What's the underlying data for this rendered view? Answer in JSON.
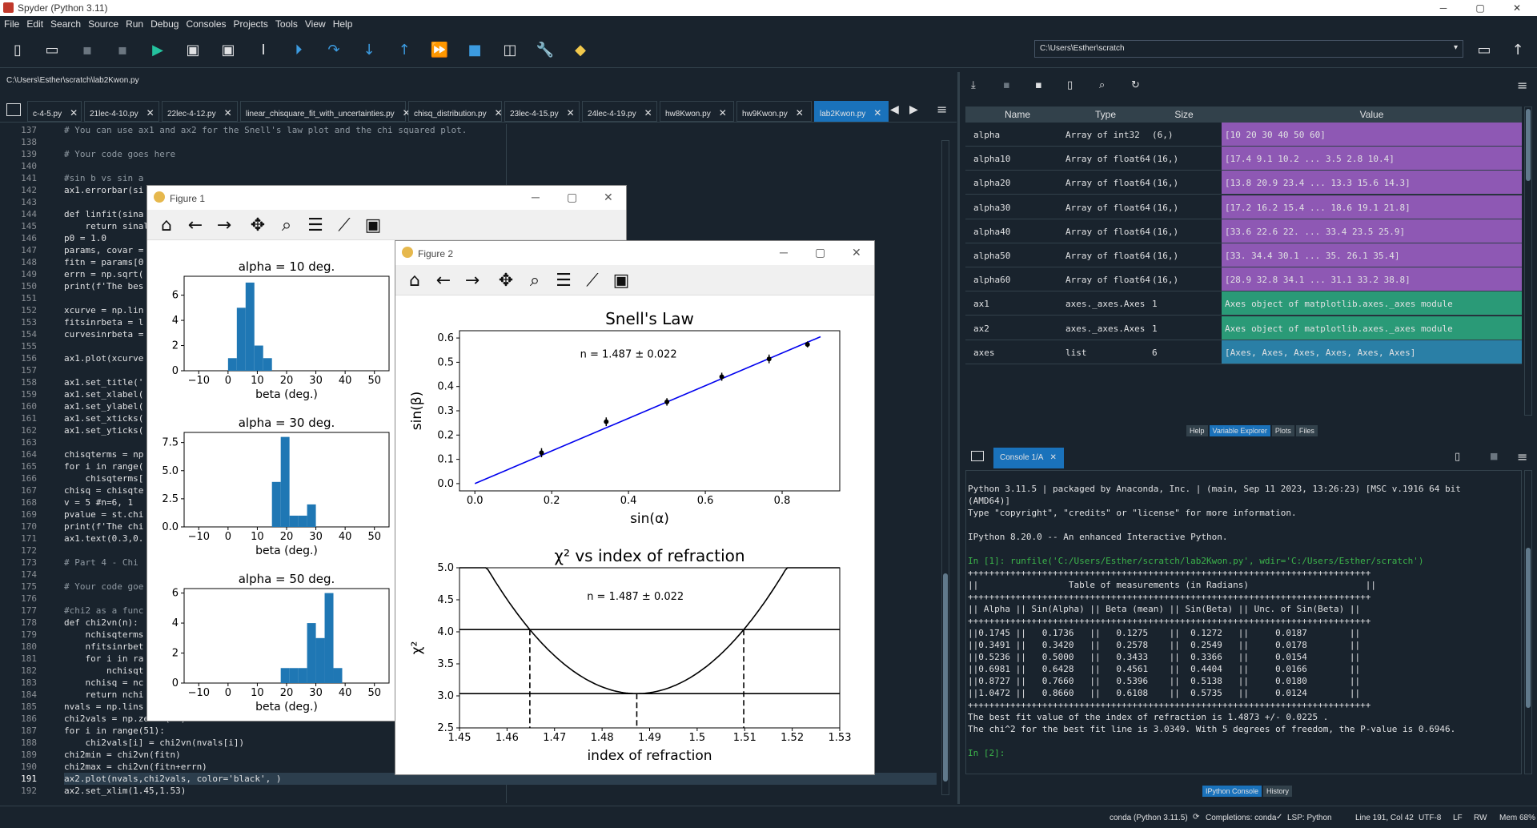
{
  "window": {
    "title": "Spyder (Python 3.11)"
  },
  "menu": [
    "File",
    "Edit",
    "Search",
    "Source",
    "Run",
    "Debug",
    "Consoles",
    "Projects",
    "Tools",
    "View",
    "Help"
  ],
  "toolbar": {
    "working_dir": "C:\\Users\\Esther\\scratch"
  },
  "editor": {
    "file_path": "C:\\Users\\Esther\\scratch\\lab2Kwon.py",
    "tabs": [
      {
        "label": "c-4-5.py"
      },
      {
        "label": "21lec-4-10.py"
      },
      {
        "label": "22lec-4-12.py"
      },
      {
        "label": "linear_chisquare_fit_with_uncertainties.py"
      },
      {
        "label": "chisq_distribution.py"
      },
      {
        "label": "23lec-4-15.py"
      },
      {
        "label": "24lec-4-19.py"
      },
      {
        "label": "hw8Kwon.py"
      },
      {
        "label": "hw9Kwon.py"
      },
      {
        "label": "lab2Kwon.py"
      }
    ],
    "line_numbers": [
      "137",
      "138",
      "139",
      "140",
      "141",
      "142",
      "143",
      "144",
      "145",
      "146",
      "147",
      "148",
      "149",
      "150",
      "151",
      "152",
      "153",
      "154",
      "155",
      "156",
      "157",
      "158",
      "159",
      "160",
      "161",
      "162",
      "163",
      "164",
      "165",
      "166",
      "167",
      "168",
      "169",
      "170",
      "171",
      "172",
      "173",
      "174",
      "175",
      "176",
      "177",
      "178",
      "179",
      "180",
      "181",
      "182",
      "183",
      "184",
      "185",
      "186",
      "187",
      "188",
      "189",
      "190",
      "191",
      "192"
    ],
    "lines": [
      "# You can use ax1 and ax2 for the Snell's law plot and the chi squared plot.",
      "",
      "# Your code goes here",
      "",
      "#sin b vs sin a",
      "ax1.errorbar(si",
      "",
      "def linfit(sina",
      "    return sinal",
      "p0 = 1.0",
      "params, covar =",
      "fitn = params[0",
      "errn = np.sqrt(",
      "print(f'The bes",
      "",
      "xcurve = np.lin",
      "fitsinrbeta = l",
      "curvesinrbeta =",
      "",
      "ax1.plot(xcurve",
      "",
      "ax1.set_title('",
      "ax1.set_xlabel(",
      "ax1.set_ylabel(",
      "ax1.set_xticks(",
      "ax1.set_yticks(",
      "",
      "chisqterms = np",
      "for i in range(",
      "    chisqterms[",
      "chisq = chisqte",
      "v = 5 #n=6, 1 ",
      "pvalue = st.chi",
      "print(f'The chi",
      "ax1.text(0.3,0.",
      "",
      "# Part 4 - Chi ",
      "",
      "# Your code goe",
      "",
      "#chi2 as a func",
      "def chi2vn(n):",
      "    nchisqterms",
      "    nfitsinrbet",
      "    for i in ra",
      "        nchisqt",
      "    nchisq = nc",
      "    return nchi",
      "nvals = np.lins",
      "chi2vals = np.zeros(51)",
      "for i in range(51):",
      "    chi2vals[i] = chi2vn(nvals[i])",
      "chi2min = chi2vn(fitn)",
      "chi2max = chi2vn(fitn+errn)",
      "ax2.plot(nvals,chi2vals, color='black', )",
      "ax2.set_xlim(1.45,1.53)"
    ]
  },
  "figure1": {
    "title": "Figure 1",
    "subplots": [
      {
        "title": "alpha = 10 deg.",
        "xlabel": "beta (deg.)"
      },
      {
        "title": "alpha = 30 deg.",
        "xlabel": "beta (deg.)"
      },
      {
        "title": "alpha = 50 deg.",
        "xlabel": "beta (deg.)"
      }
    ]
  },
  "figure2": {
    "title": "Figure 2",
    "top": {
      "title": "Snell's Law",
      "ylabel": "sin(β)",
      "xlabel": "sin(α)",
      "annotation": "n = 1.487 ± 0.022"
    },
    "bottom": {
      "title": "χ² vs index of refraction",
      "ylabel": "χ²",
      "xlabel": "index of refraction",
      "annotation": "n = 1.487 ± 0.022"
    }
  },
  "chart_data": [
    {
      "type": "bar",
      "title": "alpha = 10 deg.",
      "xlabel": "beta (deg.)",
      "xlim": [
        -15,
        55
      ],
      "ylim": [
        0,
        7.5
      ],
      "xticks": [
        -10,
        0,
        10,
        20,
        30,
        40,
        50
      ],
      "yticks": [
        0,
        2,
        4,
        6
      ],
      "bin_edges": [
        0,
        3,
        6,
        9,
        12,
        15,
        18
      ],
      "values": [
        1,
        5,
        7,
        2,
        1,
        0
      ]
    },
    {
      "type": "bar",
      "title": "alpha = 30 deg.",
      "xlabel": "beta (deg.)",
      "xlim": [
        -15,
        55
      ],
      "ylim": [
        0,
        8.4
      ],
      "xticks": [
        -10,
        0,
        10,
        20,
        30,
        40,
        50
      ],
      "yticks": [
        0.0,
        2.5,
        5.0,
        7.5
      ],
      "bin_edges": [
        15,
        18,
        21,
        24,
        27,
        30
      ],
      "values": [
        4,
        8,
        1,
        1,
        2
      ]
    },
    {
      "type": "bar",
      "title": "alpha = 50 deg.",
      "xlabel": "beta (deg.)",
      "xlim": [
        -15,
        55
      ],
      "ylim": [
        0,
        6.3
      ],
      "xticks": [
        -10,
        0,
        10,
        20,
        30,
        40,
        50
      ],
      "yticks": [
        0,
        2,
        4,
        6
      ],
      "bin_edges": [
        18,
        21,
        24,
        27,
        30,
        33,
        36,
        39
      ],
      "values": [
        1,
        1,
        1,
        4,
        3,
        6,
        1
      ]
    },
    {
      "type": "scatter",
      "title": "Snell's Law",
      "xlabel": "sin(α)",
      "ylabel": "sin(β)",
      "xlim": [
        -0.04,
        0.95
      ],
      "ylim": [
        -0.03,
        0.63
      ],
      "xticks": [
        0.0,
        0.2,
        0.4,
        0.6,
        0.8
      ],
      "yticks": [
        0.0,
        0.1,
        0.2,
        0.3,
        0.4,
        0.5,
        0.6
      ],
      "x": [
        0.1736,
        0.342,
        0.5,
        0.6428,
        0.766,
        0.866
      ],
      "y": [
        0.1272,
        0.2549,
        0.3366,
        0.4404,
        0.5138,
        0.5735
      ],
      "yerr": [
        0.0187,
        0.0178,
        0.0154,
        0.0166,
        0.018,
        0.0124
      ],
      "fit_line": {
        "x": [
          0.0,
          0.9
        ],
        "y": [
          0.0,
          0.6052
        ]
      },
      "annotation": "n = 1.487 ± 0.022"
    },
    {
      "type": "line",
      "title": "χ² vs index of refraction",
      "xlabel": "index of refraction",
      "ylabel": "χ²",
      "xlim": [
        1.45,
        1.53
      ],
      "ylim": [
        2.5,
        5.0
      ],
      "xticks": [
        1.45,
        1.46,
        1.47,
        1.48,
        1.49,
        1.5,
        1.51,
        1.52,
        1.53
      ],
      "yticks": [
        2.5,
        3.0,
        3.5,
        4.0,
        4.5,
        5.0
      ],
      "curve": {
        "min_x": 1.4873,
        "min_y": 3.0349,
        "x_at_plus1": 1.5098
      },
      "hlines": [
        3.0349,
        4.0349
      ],
      "vlines": [
        1.4648,
        1.4873,
        1.5098
      ],
      "annotation": "n = 1.487 ± 0.022"
    }
  ],
  "variables": {
    "headers": [
      "Name",
      "Type",
      "Size",
      "Value"
    ],
    "rows": [
      {
        "name": "alpha",
        "type": "Array of int32",
        "size": "(6,)",
        "value": "[10 20 30 40 50 60]",
        "color": "#8e58b4"
      },
      {
        "name": "alpha10",
        "type": "Array of float64",
        "size": "(16,)",
        "value": "[17.4  9.1 10.2 ...  3.5  2.8 10.4]",
        "color": "#8e58b4"
      },
      {
        "name": "alpha20",
        "type": "Array of float64",
        "size": "(16,)",
        "value": "[13.8 20.9 23.4 ... 13.3 15.6 14.3]",
        "color": "#8e58b4"
      },
      {
        "name": "alpha30",
        "type": "Array of float64",
        "size": "(16,)",
        "value": "[17.2 16.2 15.4 ... 18.6 19.1 21.8]",
        "color": "#8e58b4"
      },
      {
        "name": "alpha40",
        "type": "Array of float64",
        "size": "(16,)",
        "value": "[33.6 22.6 22.  ... 33.4 23.5 25.9]",
        "color": "#8e58b4"
      },
      {
        "name": "alpha50",
        "type": "Array of float64",
        "size": "(16,)",
        "value": "[33.  34.4 30.1 ... 35.  26.1 35.4]",
        "color": "#8e58b4"
      },
      {
        "name": "alpha60",
        "type": "Array of float64",
        "size": "(16,)",
        "value": "[28.9 32.8 34.1 ... 31.1 33.2 38.8]",
        "color": "#8e58b4"
      },
      {
        "name": "ax1",
        "type": "axes._axes.Axes",
        "size": "1",
        "value": "Axes object of matplotlib.axes._axes module",
        "color": "#2a9a77"
      },
      {
        "name": "ax2",
        "type": "axes._axes.Axes",
        "size": "1",
        "value": "Axes object of matplotlib.axes._axes module",
        "color": "#2a9a77"
      },
      {
        "name": "axes",
        "type": "list",
        "size": "6",
        "value": "[Axes, Axes, Axes, Axes, Axes, Axes]",
        "color": "#2a7fa6"
      }
    ]
  },
  "pane_tabs": [
    "Help",
    "Variable Explorer",
    "Plots",
    "Files"
  ],
  "console": {
    "tab": "Console 1/A",
    "lines": [
      "Python 3.11.5 | packaged by Anaconda, Inc. | (main, Sep 11 2023, 13:26:23) [MSC v.1916 64 bit",
      "(AMD64)]",
      "Type \"copyright\", \"credits\" or \"license\" for more information.",
      "",
      "IPython 8.20.0 -- An enhanced Interactive Python.",
      "",
      "In [1]: runfile('C:/Users/Esther/scratch/lab2Kwon.py', wdir='C:/Users/Esther/scratch')",
      "++++++++++++++++++++++++++++++++++++++++++++++++++++++++++++++++++++++++++++",
      "||                 Table of measurements (in Radians)                      ||",
      "++++++++++++++++++++++++++++++++++++++++++++++++++++++++++++++++++++++++++++",
      "|| Alpha || Sin(Alpha) || Beta (mean) || Sin(Beta) || Unc. of Sin(Beta) ||",
      "++++++++++++++++++++++++++++++++++++++++++++++++++++++++++++++++++++++++++++",
      "||0.1745 ||   0.1736   ||   0.1275    ||  0.1272   ||     0.0187        ||",
      "||0.3491 ||   0.3420   ||   0.2578    ||  0.2549   ||     0.0178        ||",
      "||0.5236 ||   0.5000   ||   0.3433    ||  0.3366   ||     0.0154        ||",
      "||0.6981 ||   0.6428   ||   0.4561    ||  0.4404   ||     0.0166        ||",
      "||0.8727 ||   0.7660   ||   0.5396    ||  0.5138   ||     0.0180        ||",
      "||1.0472 ||   0.8660   ||   0.6108    ||  0.5735   ||     0.0124        ||",
      "++++++++++++++++++++++++++++++++++++++++++++++++++++++++++++++++++++++++++++",
      "The best fit value of the index of refraction is 1.4873 +/- 0.0225 .",
      "The chi^2 for the best fit line is 3.0349. With 5 degrees of freedom, the P-value is 0.6946.",
      "",
      "In [2]:"
    ],
    "bottom_tabs": [
      "IPython Console",
      "History"
    ]
  },
  "status": {
    "env": "conda (Python 3.11.5)",
    "completions": "Completions: conda",
    "lsp": "LSP: Python",
    "position": "Line 191, Col 42",
    "encoding": "UTF-8",
    "eol": "LF",
    "rw": "RW",
    "mem": "Mem 68%"
  }
}
